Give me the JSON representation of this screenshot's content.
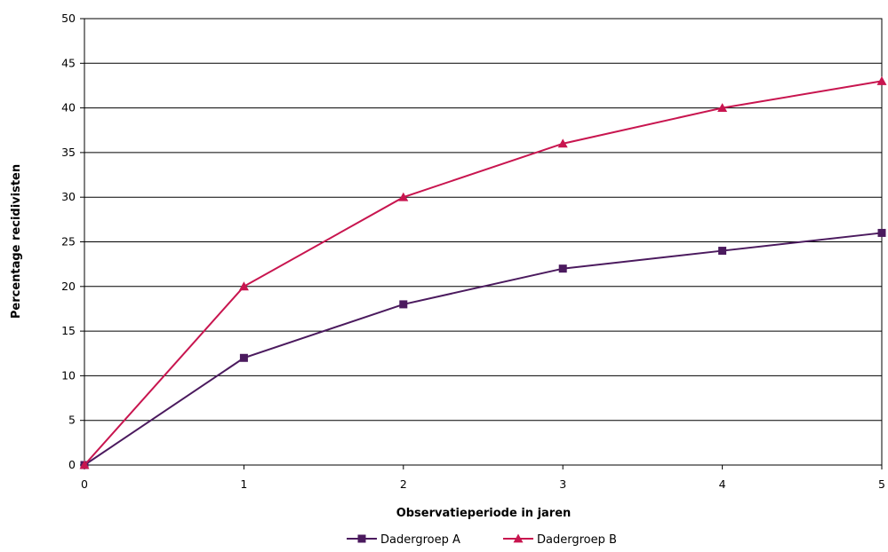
{
  "chart_data": {
    "type": "line",
    "title": "",
    "xlabel": "Observatieperiode in jaren",
    "ylabel": "Percentage recidivisten",
    "x": [
      0,
      1,
      2,
      3,
      4,
      5
    ],
    "xlim": [
      0,
      5
    ],
    "ylim": [
      0,
      50
    ],
    "y_ticks": [
      0,
      5,
      10,
      15,
      20,
      25,
      30,
      35,
      40,
      45,
      50
    ],
    "grid": true,
    "legend_position": "bottom",
    "series": [
      {
        "name": "Dadergroep A",
        "values": [
          0,
          12,
          18,
          22,
          24,
          26
        ],
        "color": "#4b1a5e",
        "marker": "square"
      },
      {
        "name": "Dadergroep B",
        "values": [
          0,
          20,
          30,
          36,
          40,
          43
        ],
        "color": "#c8154f",
        "marker": "triangle"
      }
    ]
  }
}
